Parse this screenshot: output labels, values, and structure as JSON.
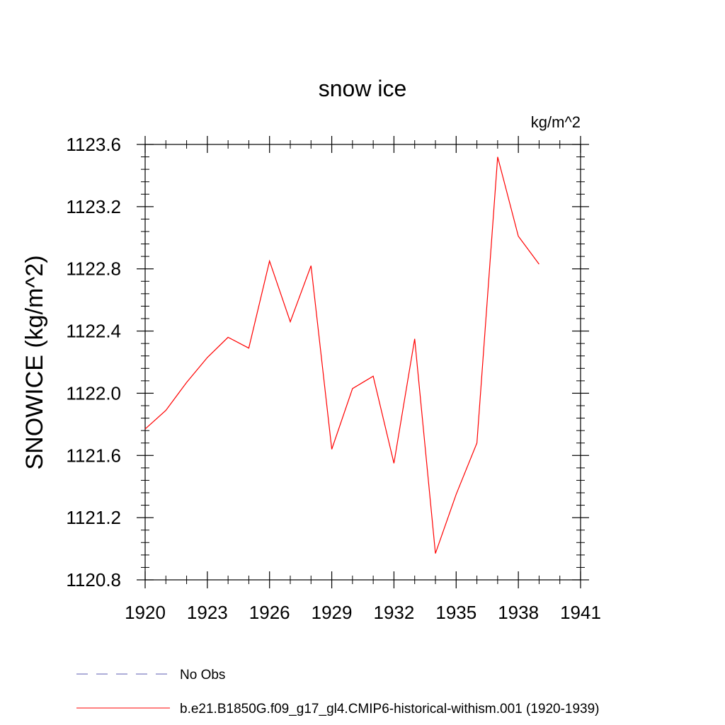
{
  "chart_data": {
    "type": "line",
    "title": "snow ice",
    "units": "kg/m^2",
    "ylabel": "SNOWICE  (kg/m^2)",
    "xlabel": "",
    "xlim": [
      1920,
      1941
    ],
    "ylim": [
      1120.8,
      1123.6
    ],
    "x_ticks": [
      1920,
      1923,
      1926,
      1929,
      1932,
      1935,
      1938,
      1941
    ],
    "x_tick_labels": [
      "1920",
      "1923",
      "1926",
      "1929",
      "1932",
      "1935",
      "1938",
      "1941"
    ],
    "y_ticks": [
      1120.8,
      1121.2,
      1121.6,
      1122.0,
      1122.4,
      1122.8,
      1123.2,
      1123.6
    ],
    "y_tick_labels": [
      "1120.8",
      "1121.2",
      "1121.6",
      "1122.0",
      "1122.4",
      "1122.8",
      "1123.2",
      "1123.6"
    ],
    "grid": false,
    "legend_position": "bottom",
    "series": [
      {
        "name": "b.e21.B1850G.f09_g17_gl4.CMIP6-historical-withism.001 (1920-1939)",
        "color": "#ff0000",
        "style": "solid",
        "x": [
          1920,
          1921,
          1922,
          1923,
          1924,
          1925,
          1926,
          1927,
          1928,
          1929,
          1930,
          1931,
          1932,
          1933,
          1934,
          1935,
          1936,
          1937,
          1938,
          1939
        ],
        "y": [
          1121.77,
          1121.89,
          1122.07,
          1122.23,
          1122.36,
          1122.29,
          1122.85,
          1122.46,
          1122.82,
          1121.64,
          1122.03,
          1122.11,
          1121.55,
          1122.35,
          1120.97,
          1121.35,
          1121.68,
          1123.52,
          1123.01,
          1122.83
        ]
      }
    ],
    "legend": [
      {
        "label": "No Obs",
        "color": "#5b5bb0",
        "style": "dashed"
      },
      {
        "label": "b.e21.B1850G.f09_g17_gl4.CMIP6-historical-withism.001 (1920-1939)",
        "color": "#ff0000",
        "style": "solid"
      }
    ]
  }
}
